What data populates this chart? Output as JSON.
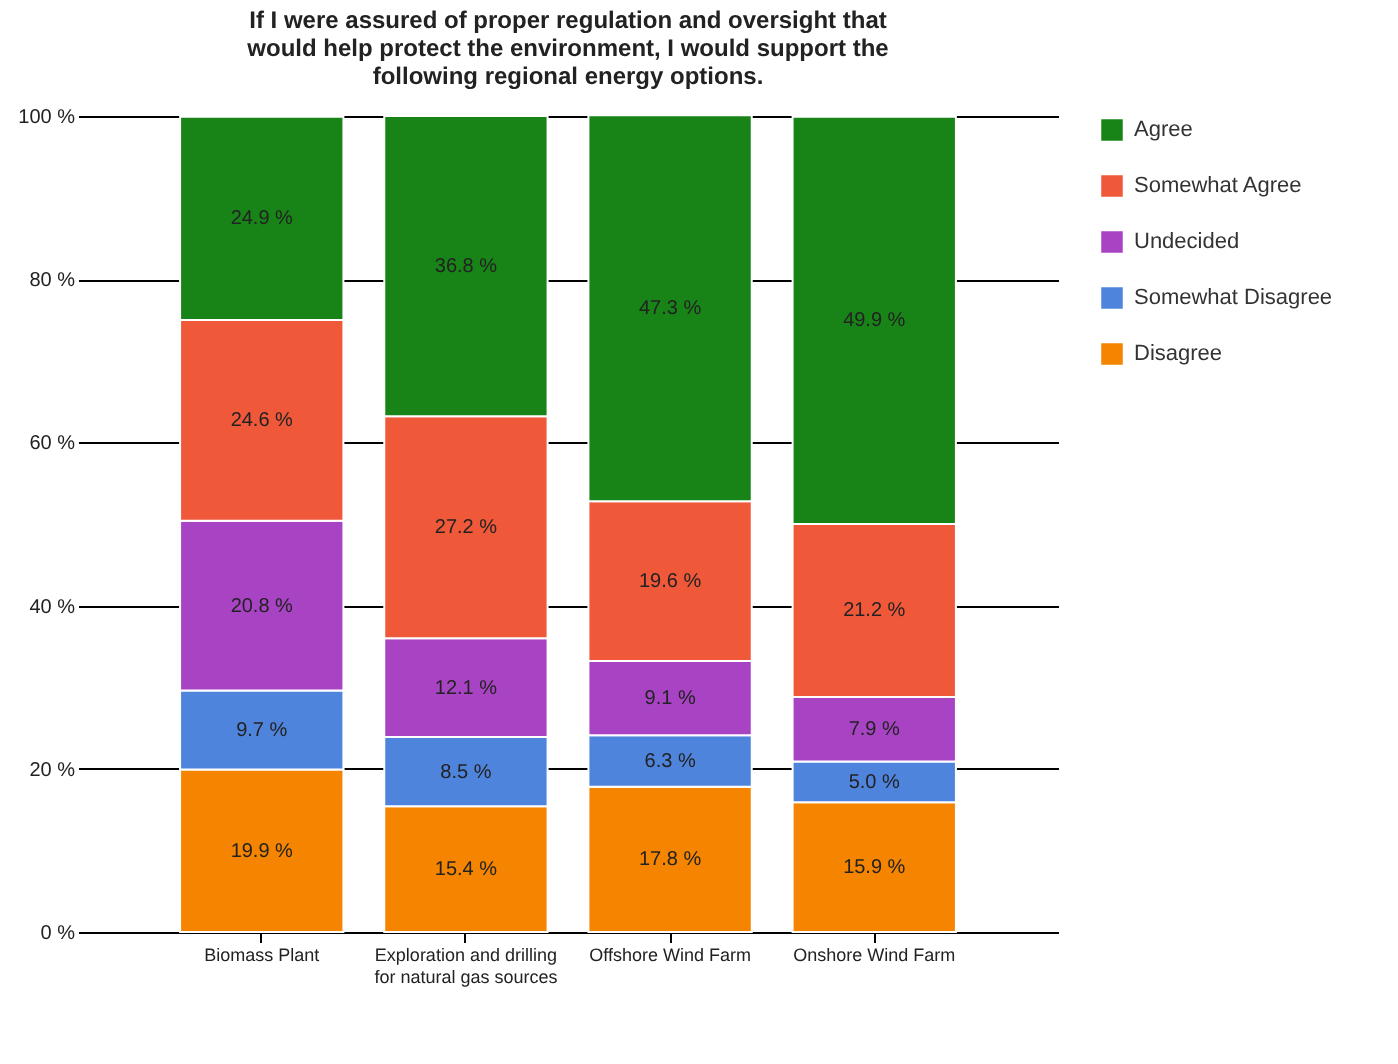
{
  "chart_data": {
    "type": "bar",
    "stacked": true,
    "title": "If I were assured of proper regulation and oversight that would help protect the environment, I would support the following regional energy options.",
    "categories": [
      "Biomass Plant",
      "Exploration and drilling for natural gas sources",
      "Offshore Wind Farm",
      "Onshore  Wind Farm"
    ],
    "series": [
      {
        "name": "Disagree",
        "color": "#f58400",
        "values": [
          19.9,
          15.4,
          17.8,
          15.9
        ],
        "value_labels": [
          "19.9 %",
          "15.4 %",
          "17.8 %",
          "15.9 %"
        ]
      },
      {
        "name": "Somewhat Disagree",
        "color": "#4f84dc",
        "values": [
          9.7,
          8.5,
          6.3,
          5.0
        ],
        "value_labels": [
          "9.7 %",
          "8.5 %",
          "6.3 %",
          "5.0 %"
        ]
      },
      {
        "name": "Undecided",
        "color": "#a844c4",
        "values": [
          20.8,
          12.1,
          9.1,
          7.9
        ],
        "value_labels": [
          "20.8 %",
          "12.1 %",
          "9.1 %",
          "7.9 %"
        ]
      },
      {
        "name": "Somewhat Agree",
        "color": "#f0583a",
        "values": [
          24.6,
          27.2,
          19.6,
          21.2
        ],
        "value_labels": [
          "24.6 %",
          "27.2 %",
          "19.6 %",
          "21.2 %"
        ]
      },
      {
        "name": "Agree",
        "color": "#188418",
        "values": [
          24.9,
          36.8,
          47.3,
          49.9
        ],
        "value_labels": [
          "24.9 %",
          "36.8 %",
          "47.3 %",
          "49.9 %"
        ]
      }
    ],
    "ylim": [
      0,
      100
    ],
    "yticks": [
      {
        "value": 0,
        "label": "0 %"
      },
      {
        "value": 20,
        "label": "20 %"
      },
      {
        "value": 40,
        "label": "40 %"
      },
      {
        "value": 60,
        "label": "60 %"
      },
      {
        "value": 80,
        "label": "80 %"
      },
      {
        "value": 100,
        "label": "100 %"
      }
    ],
    "grid": "y",
    "legend": "right"
  }
}
